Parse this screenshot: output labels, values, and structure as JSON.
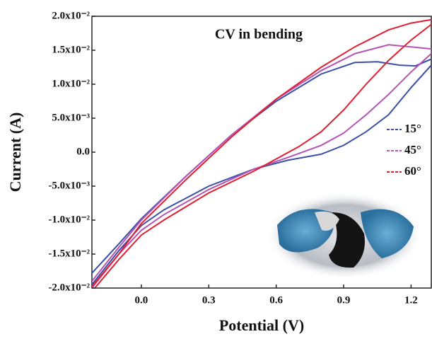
{
  "chart_data": {
    "type": "line",
    "title": "CV in bending",
    "x_label": "Potential (V)",
    "y_label": "Current (A)",
    "xlim": [
      -0.22,
      1.29
    ],
    "ylim": [
      -0.02,
      0.02
    ],
    "xticks": [
      {
        "value": 0,
        "label": "0.0"
      },
      0.3,
      0.6,
      0.9,
      1.2
    ],
    "yticks": [
      {
        "value": 0.02,
        "label": "2.0x10⁻²"
      },
      {
        "value": 0.015,
        "label": "1.5x10⁻²"
      },
      {
        "value": 0.01,
        "label": "1.0x10⁻²"
      },
      {
        "value": 0.005,
        "label": "5.0x10⁻³"
      },
      {
        "value": 0,
        "label": "0.0"
      },
      {
        "value": -0.005,
        "label": "-5.0x10⁻³"
      },
      {
        "value": -0.01,
        "label": "-1.0x10⁻²"
      },
      {
        "value": -0.015,
        "label": "-1.5x10⁻²"
      },
      {
        "value": -0.02,
        "label": "-2.0x10⁻²"
      }
    ],
    "legend_position": "right",
    "series": [
      {
        "name": "15°",
        "color": "#3a4fa8",
        "x": [
          -0.22,
          -0.1,
          0.0,
          0.2,
          0.4,
          0.6,
          0.8,
          0.95,
          1.05,
          1.15,
          1.22,
          1.29,
          1.29,
          1.2,
          1.1,
          1.0,
          0.9,
          0.8,
          0.65,
          0.5,
          0.3,
          0.1,
          0.0,
          -0.1,
          -0.22
        ],
        "values": [
          -0.0178,
          -0.0135,
          -0.0098,
          -0.0035,
          0.0025,
          0.0075,
          0.0115,
          0.0132,
          0.0133,
          0.0128,
          0.0127,
          0.0137,
          0.0128,
          0.0095,
          0.0055,
          0.003,
          0.001,
          -0.0003,
          -0.0012,
          -0.0025,
          -0.005,
          -0.0085,
          -0.0108,
          -0.0145,
          -0.0195
        ]
      },
      {
        "name": "45°",
        "color": "#b553b5",
        "x": [
          -0.22,
          -0.1,
          0.0,
          0.2,
          0.4,
          0.6,
          0.8,
          0.95,
          1.1,
          1.2,
          1.29,
          1.29,
          1.2,
          1.1,
          1.0,
          0.9,
          0.8,
          0.65,
          0.5,
          0.3,
          0.1,
          0.0,
          -0.1,
          -0.22
        ],
        "values": [
          -0.019,
          -0.014,
          -0.01,
          -0.0035,
          0.0025,
          0.0078,
          0.012,
          0.0145,
          0.0158,
          0.0155,
          0.0152,
          0.0145,
          0.0118,
          0.0085,
          0.0055,
          0.0028,
          0.001,
          -0.0008,
          -0.0025,
          -0.0055,
          -0.0092,
          -0.0115,
          -0.015,
          -0.02
        ]
      },
      {
        "name": "60°",
        "color": "#e02030",
        "x": [
          -0.22,
          -0.1,
          0.0,
          0.2,
          0.4,
          0.6,
          0.8,
          0.95,
          1.1,
          1.2,
          1.29,
          1.29,
          1.2,
          1.1,
          1.0,
          0.9,
          0.8,
          0.7,
          0.6,
          0.5,
          0.3,
          0.1,
          0.0,
          -0.1,
          -0.22
        ],
        "values": [
          -0.0198,
          -0.015,
          -0.0105,
          -0.004,
          0.0022,
          0.0078,
          0.0125,
          0.0155,
          0.018,
          0.019,
          0.0195,
          0.0188,
          0.0165,
          0.0135,
          0.01,
          0.0062,
          0.003,
          0.0008,
          -0.001,
          -0.0028,
          -0.006,
          -0.01,
          -0.0122,
          -0.0158,
          -0.0205
        ]
      }
    ]
  }
}
